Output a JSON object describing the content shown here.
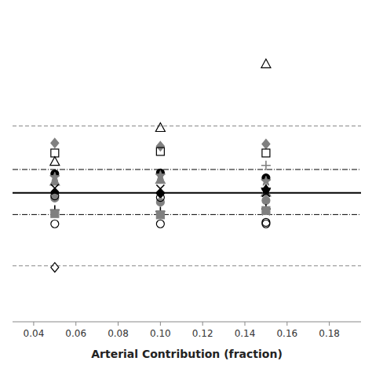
{
  "chart_data": {
    "type": "scatter",
    "x_label": "Arterial Contribution (fraction)",
    "xlim": [
      0.03,
      0.195
    ],
    "xticks": [
      0.04,
      0.06,
      0.08,
      {
        "value": 0.1,
        "label": "0.10"
      },
      0.12,
      0.14,
      0.16,
      0.18
    ],
    "ylim": [
      0,
      1
    ],
    "tick_labels": "x",
    "reference_lines": [
      {
        "value": 0.415,
        "line_style": "solid",
        "color": "#000000"
      },
      {
        "value": 0.49,
        "line_style": "dash-dot",
        "color": "#000000"
      },
      {
        "value": 0.345,
        "line_style": "dash-dot",
        "color": "#000000"
      },
      {
        "value": 0.63,
        "line_style": "dashed",
        "color": "#888888"
      },
      {
        "value": 0.18,
        "line_style": "dashed",
        "color": "#888888"
      }
    ],
    "series": [
      {
        "marker": "triangle-open",
        "color": "#000000",
        "x": [
          0.15
        ],
        "values": [
          0.83
        ]
      },
      {
        "marker": "triangle-open",
        "color": "#000000",
        "x": [
          0.1
        ],
        "values": [
          0.625
        ]
      },
      {
        "marker": "diamond",
        "color": "#808080",
        "x": [
          0.05,
          0.1,
          0.15
        ],
        "values": [
          0.575,
          0.565,
          0.572
        ]
      },
      {
        "marker": "square-open",
        "color": "#000000",
        "x": [
          0.05,
          0.1,
          0.15
        ],
        "values": [
          0.543,
          0.548,
          0.543
        ]
      },
      {
        "marker": "triangle-open",
        "color": "#000000",
        "x": [
          0.05
        ],
        "values": [
          0.516
        ]
      },
      {
        "marker": "plus",
        "color": "#808080",
        "x": [
          0.15
        ],
        "values": [
          0.503
        ]
      },
      {
        "marker": "circle",
        "color": "#000000",
        "x": [
          0.05,
          0.1,
          0.15
        ],
        "values": [
          0.476,
          0.479,
          0.463
        ]
      },
      {
        "marker": "star",
        "color": "#808080",
        "x": [
          0.05,
          0.1,
          0.15
        ],
        "values": [
          0.465,
          0.47,
          0.452
        ]
      },
      {
        "marker": "triangle",
        "color": "#808080",
        "x": [
          0.05,
          0.1,
          0.15
        ],
        "values": [
          0.452,
          0.458,
          0.417
        ]
      },
      {
        "marker": "x",
        "color": "#000000",
        "x": [
          0.05,
          0.1,
          0.15
        ],
        "values": [
          0.43,
          0.428,
          0.415
        ]
      },
      {
        "marker": "diamond",
        "color": "#000000",
        "x": [
          0.05,
          0.1,
          0.15
        ],
        "values": [
          0.415,
          0.413,
          0.425
        ]
      },
      {
        "marker": "star",
        "color": "#000000",
        "x": [
          0.15
        ],
        "values": [
          0.425
        ]
      },
      {
        "marker": "circle",
        "color": "#808080",
        "x": [
          0.05,
          0.1,
          0.15
        ],
        "values": [
          0.398,
          0.385,
          0.39
        ]
      },
      {
        "marker": "circle-open",
        "color": "#000000",
        "x": [
          0.05,
          0.1
        ],
        "values": [
          0.405,
          0.4
        ]
      },
      {
        "marker": "plus",
        "color": "#000000",
        "x": [
          0.05,
          0.1,
          0.15
        ],
        "values": [
          0.36,
          0.355,
          0.363
        ]
      },
      {
        "marker": "x",
        "color": "#808080",
        "x": [
          0.15
        ],
        "values": [
          0.355
        ]
      },
      {
        "marker": "square",
        "color": "#808080",
        "x": [
          0.05,
          0.1,
          0.15
        ],
        "values": [
          0.348,
          0.344,
          0.358
        ]
      },
      {
        "marker": "circle-open",
        "color": "#000000",
        "x": [
          0.05,
          0.1,
          0.15
        ],
        "values": [
          0.315,
          0.315,
          0.315
        ]
      },
      {
        "marker": "circle-open",
        "color": "#000000",
        "x": [
          0.15
        ],
        "values": [
          0.32
        ]
      },
      {
        "marker": "diamond-open",
        "color": "#000000",
        "x": [
          0.05
        ],
        "values": [
          0.175
        ]
      }
    ]
  }
}
